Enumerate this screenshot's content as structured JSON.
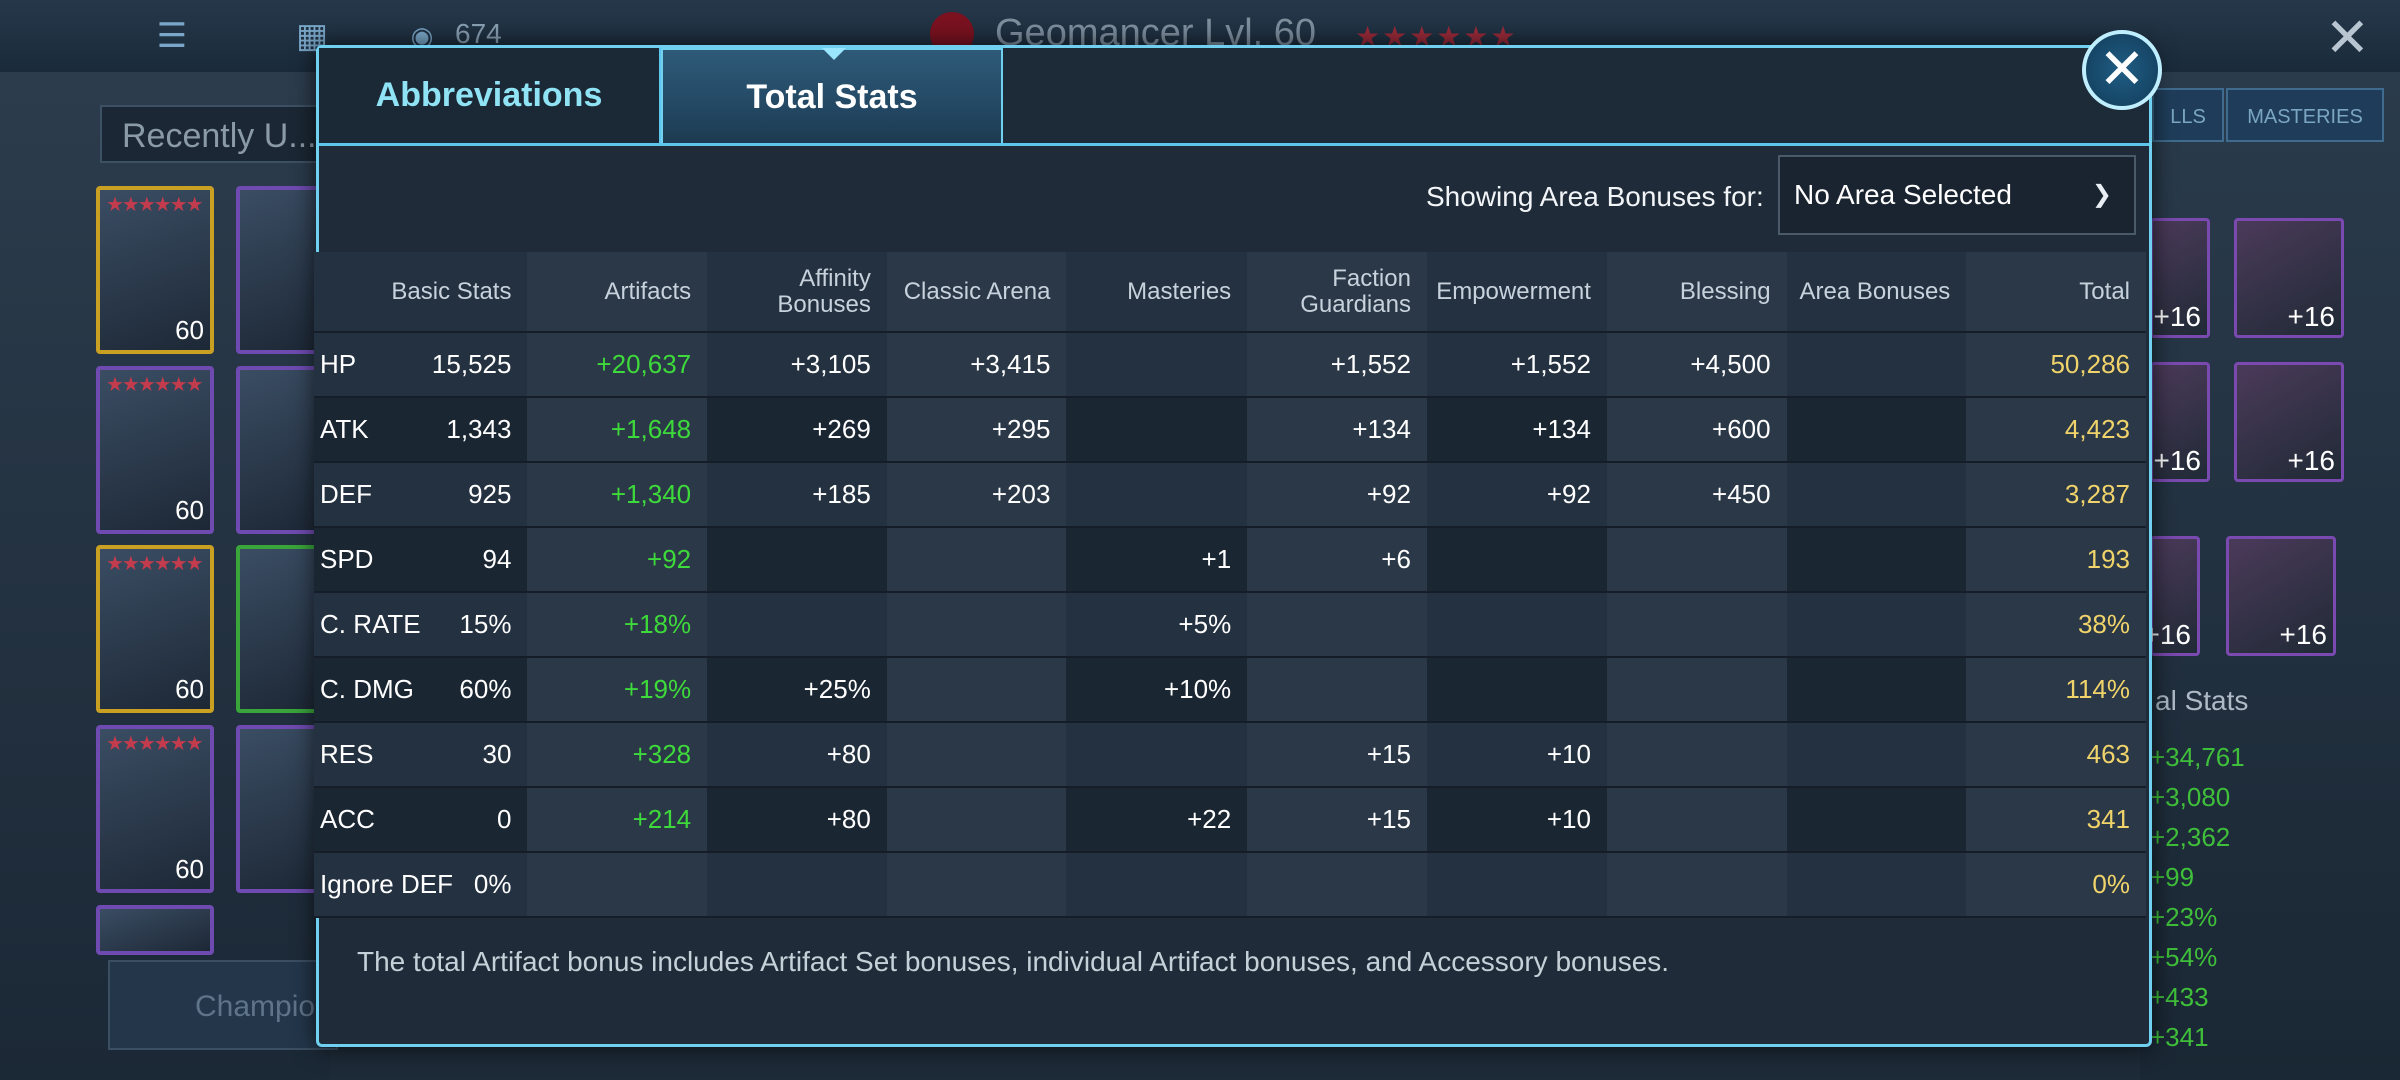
{
  "background": {
    "inventory_count": "674",
    "hero_title": "Geomancer Lvl. 60",
    "hero_stars": "★★★★★★",
    "search_placeholder": "Recently U...",
    "champions_button": "Champio",
    "right_tabs": [
      "LLS",
      "MASTERIES"
    ],
    "total_stats_label": "al Stats",
    "total_stats_values": [
      "+34,761",
      "+3,080",
      "+2,362",
      "+99",
      "+23%",
      "+54%",
      "+433",
      "+341"
    ],
    "card_levels": [
      "60",
      "60",
      "60",
      "60"
    ],
    "gear_levels": [
      "+16",
      "+16",
      "+16",
      "+16",
      "+16",
      "+16"
    ]
  },
  "modal": {
    "tabs": [
      {
        "label": "Abbreviations",
        "active": false
      },
      {
        "label": "Total Stats",
        "active": true
      }
    ],
    "area_label": "Showing Area Bonuses for:",
    "area_select_value": "No Area Selected",
    "columns": [
      "Basic Stats",
      "Artifacts",
      "Affinity Bonuses",
      "Classic Arena",
      "Masteries",
      "Faction Guardians",
      "Empowerment",
      "Blessing",
      "Area Bonuses",
      "Total"
    ],
    "rows": [
      {
        "stat": "HP",
        "basic": "15,525",
        "artifacts": "+20,637",
        "affinity": "+3,105",
        "arena": "+3,415",
        "masteries": "",
        "faction": "+1,552",
        "empowerment": "+1,552",
        "blessing": "+4,500",
        "area": "",
        "total": "50,286"
      },
      {
        "stat": "ATK",
        "basic": "1,343",
        "artifacts": "+1,648",
        "affinity": "+269",
        "arena": "+295",
        "masteries": "",
        "faction": "+134",
        "empowerment": "+134",
        "blessing": "+600",
        "area": "",
        "total": "4,423"
      },
      {
        "stat": "DEF",
        "basic": "925",
        "artifacts": "+1,340",
        "affinity": "+185",
        "arena": "+203",
        "masteries": "",
        "faction": "+92",
        "empowerment": "+92",
        "blessing": "+450",
        "area": "",
        "total": "3,287"
      },
      {
        "stat": "SPD",
        "basic": "94",
        "artifacts": "+92",
        "affinity": "",
        "arena": "",
        "masteries": "+1",
        "faction": "+6",
        "empowerment": "",
        "blessing": "",
        "area": "",
        "total": "193"
      },
      {
        "stat": "C. RATE",
        "basic": "15%",
        "artifacts": "+18%",
        "affinity": "",
        "arena": "",
        "masteries": "+5%",
        "faction": "",
        "empowerment": "",
        "blessing": "",
        "area": "",
        "total": "38%"
      },
      {
        "stat": "C. DMG",
        "basic": "60%",
        "artifacts": "+19%",
        "affinity": "+25%",
        "arena": "",
        "masteries": "+10%",
        "faction": "",
        "empowerment": "",
        "blessing": "",
        "area": "",
        "total": "114%"
      },
      {
        "stat": "RES",
        "basic": "30",
        "artifacts": "+328",
        "affinity": "+80",
        "arena": "",
        "masteries": "",
        "faction": "+15",
        "empowerment": "+10",
        "blessing": "",
        "area": "",
        "total": "463"
      },
      {
        "stat": "ACC",
        "basic": "0",
        "artifacts": "+214",
        "affinity": "+80",
        "arena": "",
        "masteries": "+22",
        "faction": "+15",
        "empowerment": "+10",
        "blessing": "",
        "area": "",
        "total": "341"
      },
      {
        "stat": "Ignore DEF",
        "basic": "0%",
        "artifacts": "",
        "affinity": "",
        "arena": "",
        "masteries": "",
        "faction": "",
        "empowerment": "",
        "blessing": "",
        "area": "",
        "total": "0%"
      }
    ],
    "footnote": "The total Artifact bonus includes Artifact Set bonuses, individual Artifact bonuses, and Accessory bonuses."
  },
  "colors": {
    "accent": "#6fd0f0",
    "artifact_green": "#3ed93a",
    "total_gold": "#f0d36a"
  }
}
